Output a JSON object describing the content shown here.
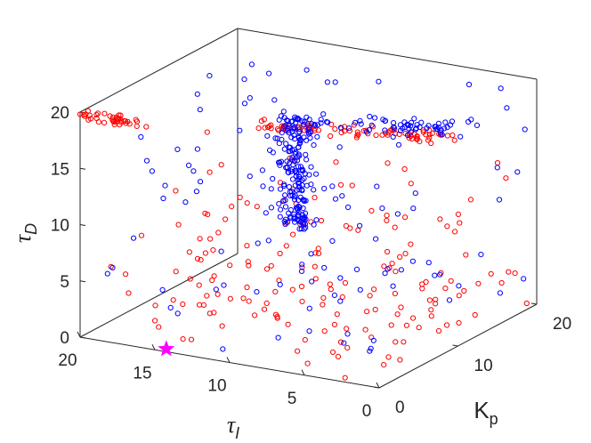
{
  "chart_data": {
    "type": "scatter3d",
    "title": "",
    "axes": {
      "x": {
        "symbol": "τ",
        "subscript": "I",
        "range": [
          0,
          20
        ],
        "ticks": [
          "0",
          "5",
          "10",
          "15",
          "20"
        ]
      },
      "y": {
        "symbol": "K",
        "subscript": "p",
        "range": [
          0,
          20
        ],
        "ticks": [
          "0",
          "10",
          "20"
        ]
      },
      "z": {
        "symbol": "τ",
        "subscript": "D",
        "range": [
          0,
          20
        ],
        "ticks": [
          "0",
          "5",
          "10",
          "15",
          "20"
        ]
      }
    },
    "grid": false,
    "legend": "none",
    "series": [
      {
        "color": "#ff0000",
        "marker": "circle-open",
        "generated_count": 280,
        "points": [
          [
            20,
            0,
            19.8
          ],
          [
            19,
            0.2,
            19.6
          ],
          [
            18,
            0.4,
            19.5
          ],
          [
            17,
            0.6,
            19.4
          ],
          [
            16,
            0.8,
            19.3
          ],
          [
            10,
            10,
            17.5
          ],
          [
            9,
            11,
            17.3
          ],
          [
            8,
            12,
            17.1
          ],
          [
            7,
            12.5,
            17
          ],
          [
            6,
            13,
            16.8
          ],
          [
            5,
            13.5,
            16.6
          ],
          [
            4,
            14,
            16.4
          ],
          [
            3,
            15,
            16.2
          ],
          [
            12,
            6,
            4
          ],
          [
            10,
            8,
            3.5
          ],
          [
            6,
            12,
            5
          ],
          [
            4,
            16,
            2
          ],
          [
            2,
            18,
            3
          ],
          [
            18,
            4,
            8
          ],
          [
            15,
            3,
            10
          ],
          [
            2,
            14,
            9
          ],
          [
            8,
            2,
            6
          ],
          [
            1,
            5,
            2
          ],
          [
            14,
            10,
            4
          ]
        ]
      },
      {
        "color": "#0000ff",
        "marker": "circle-open",
        "generated_count": 340,
        "points": [
          [
            12,
            12,
            14
          ],
          [
            11,
            12,
            12
          ],
          [
            12,
            13,
            10
          ],
          [
            13,
            11,
            9
          ],
          [
            12,
            12,
            16
          ],
          [
            11,
            13,
            15
          ],
          [
            10,
            12,
            11
          ],
          [
            12,
            12,
            8
          ],
          [
            4,
            19,
            19
          ],
          [
            18,
            18,
            18
          ],
          [
            2,
            20,
            17
          ],
          [
            0,
            15,
            14
          ],
          [
            15,
            2,
            3
          ],
          [
            8,
            18,
            2
          ],
          [
            16,
            16,
            6
          ],
          [
            5,
            5,
            1
          ],
          [
            3,
            12,
            6
          ],
          [
            18,
            10,
            12
          ],
          [
            14,
            3,
            15
          ],
          [
            6,
            16,
            10
          ]
        ]
      },
      {
        "color": "#ff00ff",
        "marker": "star",
        "points": [
          [
            14.5,
            0.5,
            0
          ]
        ]
      }
    ]
  }
}
